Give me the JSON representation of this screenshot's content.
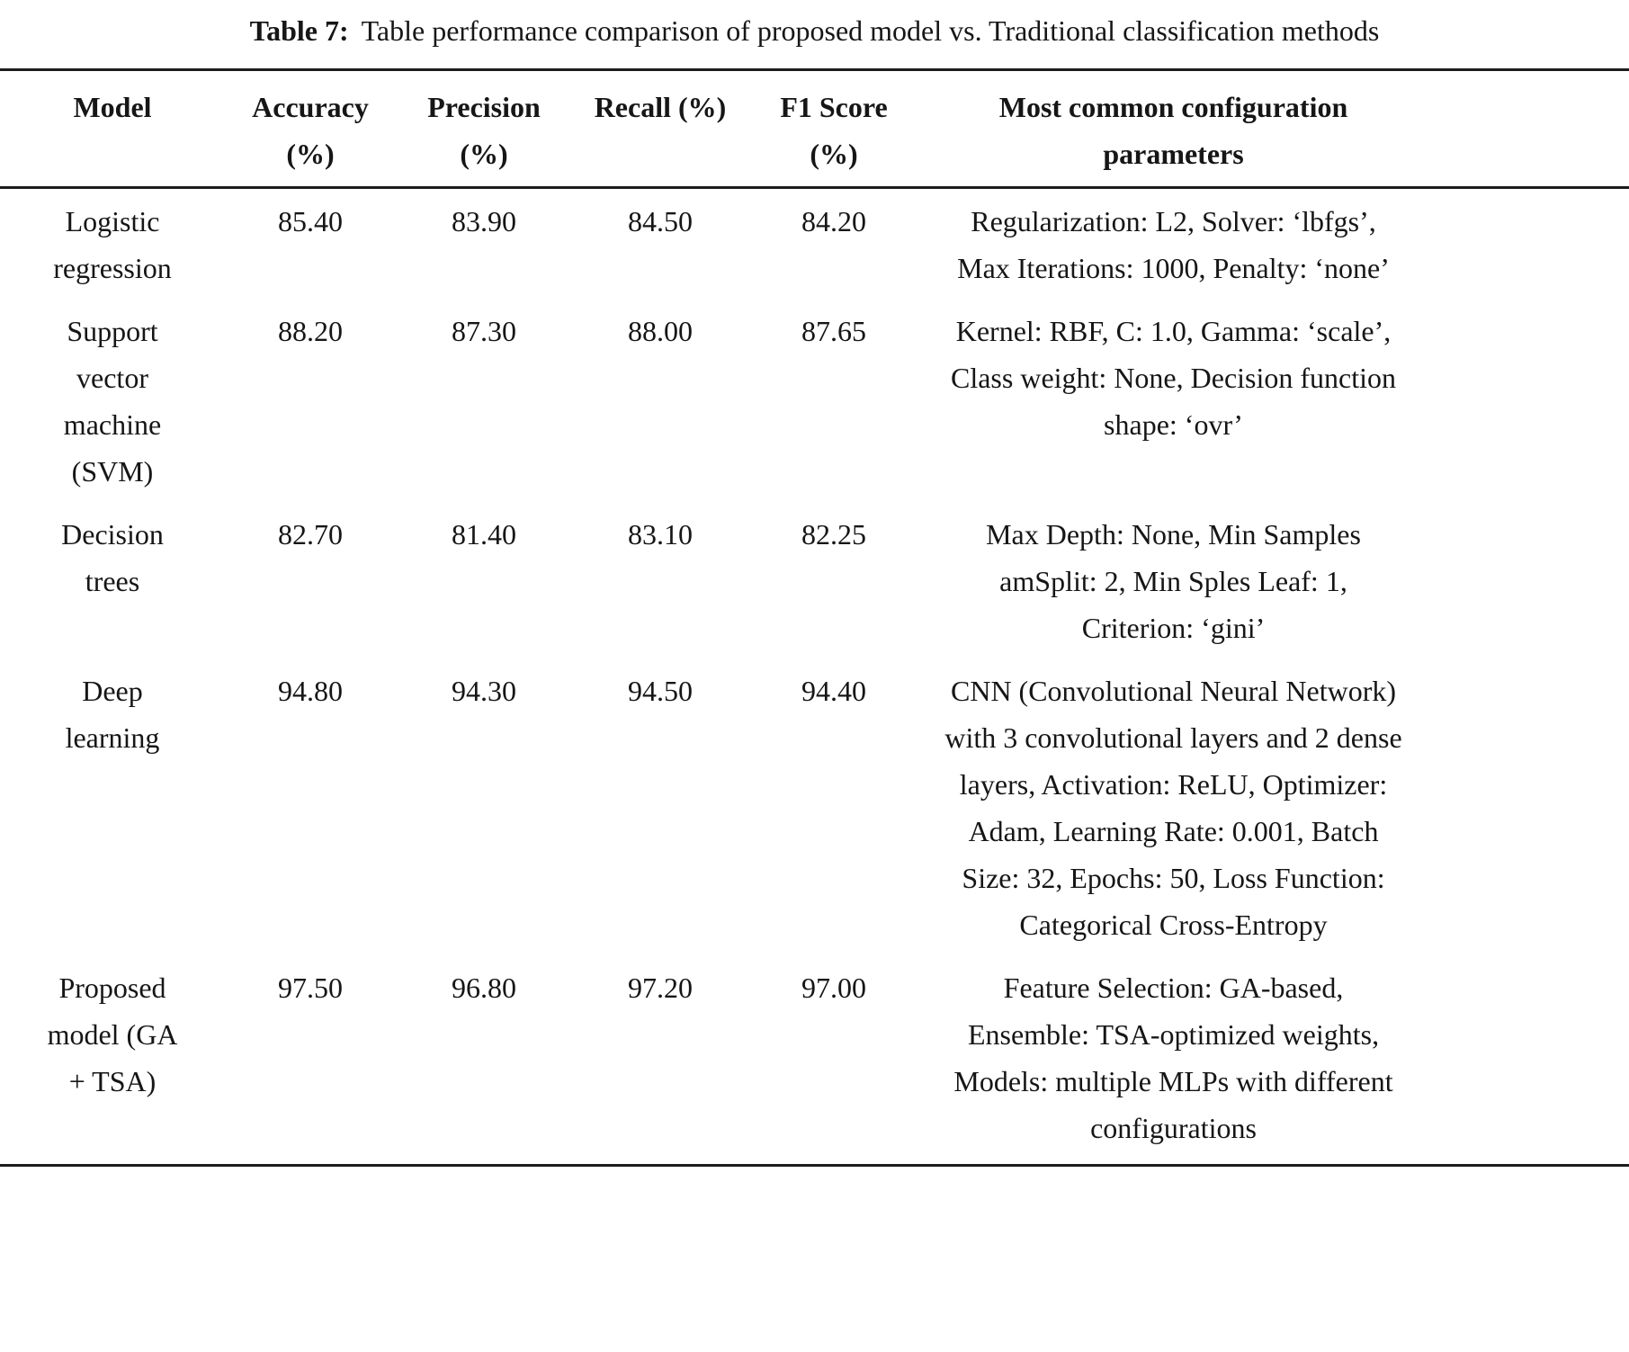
{
  "caption": {
    "label": "Table 7:",
    "text": "Table performance comparison of proposed model vs. Traditional classification methods"
  },
  "table": {
    "headers": {
      "model": "Model",
      "accuracy": "Accuracy (%)",
      "precision": "Precision (%)",
      "recall": "Recall (%)",
      "f1": "F1 Score (%)",
      "config": "Most common configuration parameters"
    },
    "rows": [
      {
        "model": "Logistic regression",
        "accuracy": "85.40",
        "precision": "83.90",
        "recall": "84.50",
        "f1": "84.20",
        "config": "Regularization: L2, Solver: ‘lbfgs’, Max Iterations: 1000, Penalty: ‘none’"
      },
      {
        "model": "Support vector machine (SVM)",
        "accuracy": "88.20",
        "precision": "87.30",
        "recall": "88.00",
        "f1": "87.65",
        "config": "Kernel: RBF, C: 1.0, Gamma: ‘scale’, Class weight: None, Decision function shape: ‘ovr’"
      },
      {
        "model": "Decision trees",
        "accuracy": "82.70",
        "precision": "81.40",
        "recall": "83.10",
        "f1": "82.25",
        "config": "Max Depth: None, Min Samples amSplit: 2, Min Sples Leaf: 1, Criterion: ‘gini’"
      },
      {
        "model": "Deep learning",
        "accuracy": "94.80",
        "precision": "94.30",
        "recall": "94.50",
        "f1": "94.40",
        "config": "CNN (Convolutional Neural Network) with 3 convolutional layers and 2 dense layers, Activation: ReLU, Optimizer: Adam, Learning Rate: 0.001, Batch Size: 32, Epochs: 50, Loss Function: Categorical Cross-Entropy"
      },
      {
        "model": "Proposed model (GA + TSA)",
        "accuracy": "97.50",
        "precision": "96.80",
        "recall": "97.20",
        "f1": "97.00",
        "config": "Feature Selection: GA-based, Ensemble: TSA-optimized weights, Models: multiple MLPs with different configurations"
      }
    ]
  }
}
